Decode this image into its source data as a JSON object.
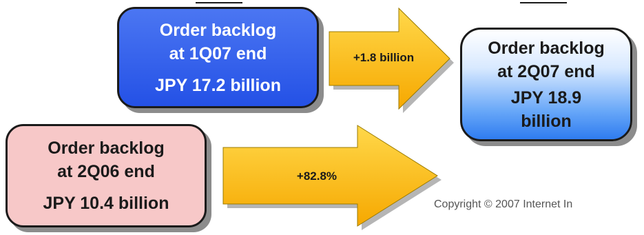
{
  "boxes": {
    "q1_2007": {
      "line1": "Order backlog",
      "line2": "at 1Q07 end",
      "value": "JPY 17.2 billion"
    },
    "q2_2006": {
      "line1": "Order backlog",
      "line2": "at 2Q06 end",
      "value": "JPY 10.4 billion"
    },
    "q2_2007": {
      "line1": "Order backlog",
      "line2": "at 2Q07 end",
      "value_line1": "JPY 18.9",
      "value_line2": "billion"
    }
  },
  "arrows": {
    "upper": {
      "label": "+1.8 billion"
    },
    "lower": {
      "label": "+82.8%"
    }
  },
  "footer": {
    "copyright": "Copyright © 2007  Internet In"
  },
  "colors": {
    "box_1q07": "#2451e6",
    "box_2q06": "#f7c8c8",
    "box_2q07": "#66a6f8",
    "arrow_fill": "#f7b800"
  }
}
